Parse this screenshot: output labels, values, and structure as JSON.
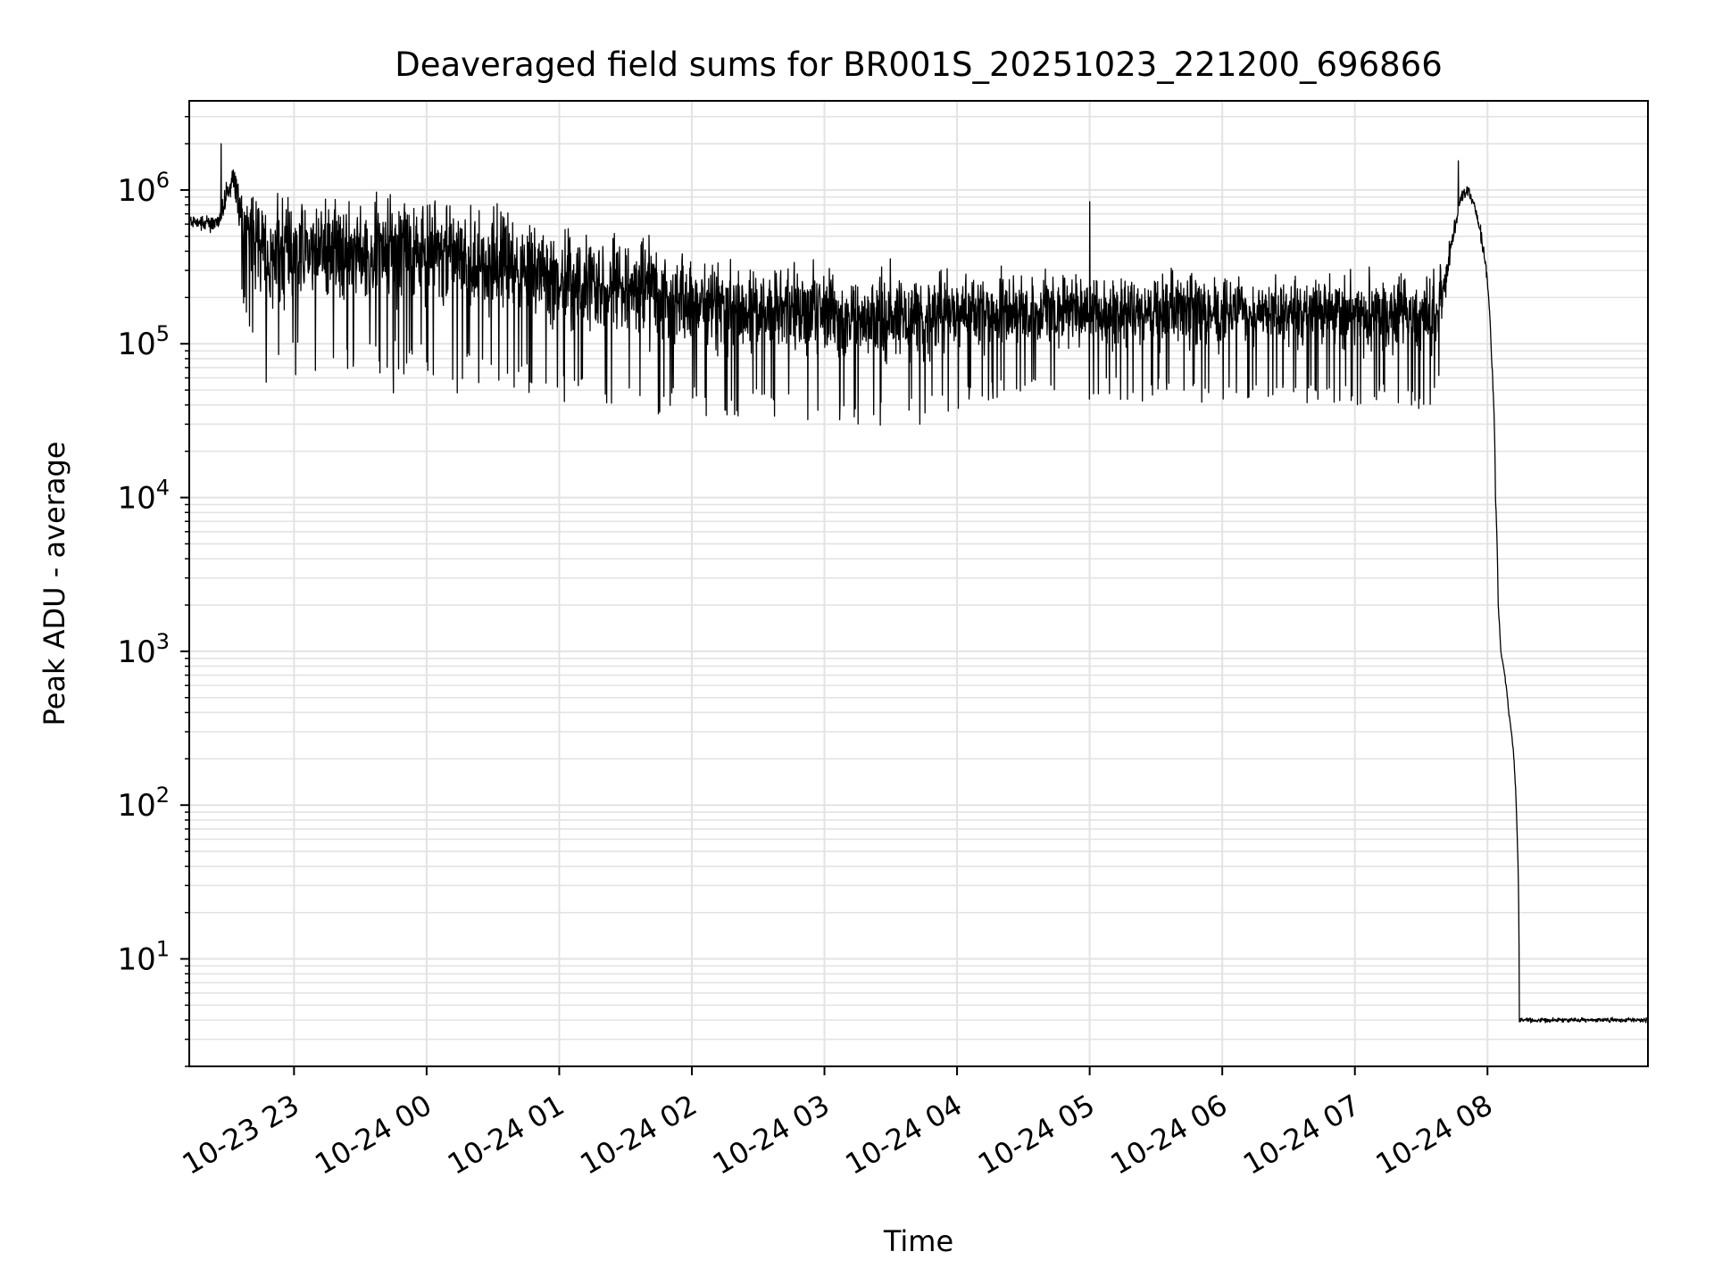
{
  "chart_data": {
    "type": "line",
    "title": "Deaveraged field sums for BR001S_20251023_221200_696866",
    "xlabel": "Time",
    "ylabel": "Peak ADU - average",
    "yscale": "log",
    "ylim": [
      2.0,
      3800000
    ],
    "xlim_hours": [
      -1.79,
      9.21
    ],
    "grid": true,
    "line_color": "#000000",
    "x_ticks": [
      {
        "h": -1,
        "label": "10-23 23"
      },
      {
        "h": 0,
        "label": "10-24 00"
      },
      {
        "h": 1,
        "label": "10-24 01"
      },
      {
        "h": 2,
        "label": "10-24 02"
      },
      {
        "h": 3,
        "label": "10-24 03"
      },
      {
        "h": 4,
        "label": "10-24 04"
      },
      {
        "h": 5,
        "label": "10-24 05"
      },
      {
        "h": 6,
        "label": "10-24 06"
      },
      {
        "h": 7,
        "label": "10-24 07"
      },
      {
        "h": 8,
        "label": "10-24 08"
      }
    ],
    "y_ticks": [
      {
        "exp": 1,
        "base": "10",
        "sup": "1"
      },
      {
        "exp": 2,
        "base": "10",
        "sup": "2"
      },
      {
        "exp": 3,
        "base": "10",
        "sup": "3"
      },
      {
        "exp": 4,
        "base": "10",
        "sup": "4"
      },
      {
        "exp": 5,
        "base": "10",
        "sup": "5"
      },
      {
        "exp": 6,
        "base": "10",
        "sup": "6"
      }
    ],
    "series": [
      {
        "name": "field sums",
        "x_hours": [
          -1.78,
          -1.6,
          -1.55,
          -1.5,
          -1.45,
          -1.4,
          -1.2,
          -1.0,
          -0.5,
          0.0,
          0.5,
          1.0,
          1.5,
          2.0,
          2.5,
          3.0,
          3.5,
          4.0,
          4.5,
          5.0,
          5.5,
          6.0,
          6.5,
          7.0,
          7.3,
          7.5,
          7.6,
          7.65,
          7.7,
          7.75,
          7.8,
          7.85,
          7.9,
          7.95,
          8.0,
          8.03,
          8.06,
          8.08,
          8.1,
          8.13,
          8.16,
          8.19,
          8.22,
          8.24,
          8.26,
          8.28,
          8.3,
          8.32,
          8.34,
          8.36,
          8.38,
          8.4,
          8.42,
          8.45,
          8.5,
          8.6,
          8.7,
          8.8,
          8.9,
          9.0,
          9.1,
          9.2
        ],
        "y_center": [
          620000,
          600000,
          650000,
          1000000,
          1200000,
          700000,
          350000,
          400000,
          420000,
          400000,
          330000,
          260000,
          230000,
          190000,
          170000,
          160000,
          150000,
          160000,
          160000,
          170000,
          165000,
          160000,
          160000,
          155000,
          150000,
          160000,
          170000,
          200000,
          300000,
          550000,
          900000,
          1000000,
          800000,
          500000,
          250000,
          80000,
          10000,
          2000,
          1000,
          700,
          400,
          250,
          80,
          4,
          4,
          4,
          4,
          4,
          4,
          4,
          4,
          4,
          4,
          4,
          4,
          4,
          4,
          4,
          4,
          4,
          4,
          4
        ],
        "noise_dex": [
          0.05,
          0.08,
          0.1,
          0.1,
          0.15,
          0.3,
          0.5,
          0.45,
          0.45,
          0.45,
          0.45,
          0.45,
          0.45,
          0.42,
          0.4,
          0.4,
          0.4,
          0.35,
          0.33,
          0.33,
          0.33,
          0.33,
          0.33,
          0.33,
          0.33,
          0.35,
          0.35,
          0.3,
          0.15,
          0.08,
          0.06,
          0.06,
          0.06,
          0.08,
          0.05,
          0.03,
          0.03,
          0.02,
          0.02,
          0.02,
          0.02,
          0.02,
          0.02,
          0.02,
          0.02,
          0.02,
          0.02,
          0.02,
          0.02,
          0.02,
          0.02,
          0.02,
          0.02,
          0.02,
          0.02,
          0.02,
          0.02,
          0.02,
          0.02,
          0.02,
          0.02,
          0.02
        ],
        "spikes": [
          {
            "h": -1.55,
            "y": 2000000
          },
          {
            "h": 7.78,
            "y": 1550000
          },
          {
            "h": -0.25,
            "y": 48000
          },
          {
            "h": 0.23,
            "y": 48000
          },
          {
            "h": 2.35,
            "y": 34000
          },
          {
            "h": 2.95,
            "y": 37000
          },
          {
            "h": 3.72,
            "y": 30000
          },
          {
            "h": 1.85,
            "y": 48000
          },
          {
            "h": 5.0,
            "y": 840000
          },
          {
            "h": 6.2,
            "y": 45000
          },
          {
            "h": 7.6,
            "y": 52000
          }
        ]
      }
    ]
  }
}
